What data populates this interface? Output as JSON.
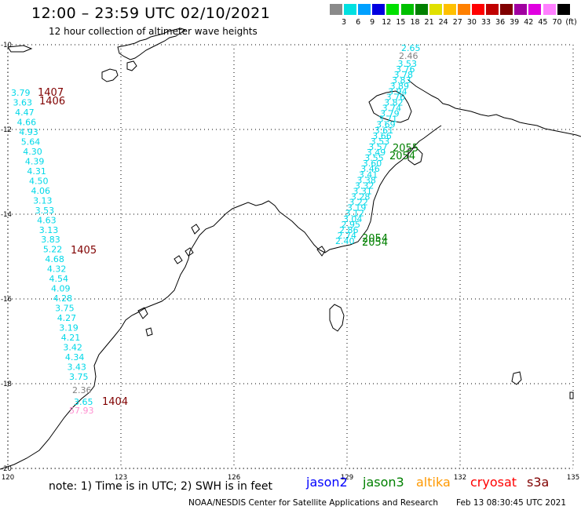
{
  "header": {
    "title": "12:00 – 23:59 UTC 02/10/2021",
    "subtitle": "12 hour collection of altimeter wave heights"
  },
  "legend": {
    "unit": "(ft)",
    "items": [
      {
        "label": "3",
        "color": "#8a8a8a"
      },
      {
        "label": "6",
        "color": "#00e0e0"
      },
      {
        "label": "9",
        "color": "#00a0ff"
      },
      {
        "label": "12",
        "color": "#0000e0"
      },
      {
        "label": "15",
        "color": "#00e000"
      },
      {
        "label": "18",
        "color": "#00c000"
      },
      {
        "label": "21",
        "color": "#008000"
      },
      {
        "label": "24",
        "color": "#e0e000"
      },
      {
        "label": "27",
        "color": "#ffc000"
      },
      {
        "label": "30",
        "color": "#ff8000"
      },
      {
        "label": "33",
        "color": "#ff0000"
      },
      {
        "label": "36",
        "color": "#c00000"
      },
      {
        "label": "39",
        "color": "#800000"
      },
      {
        "label": "42",
        "color": "#a000a0"
      },
      {
        "label": "45",
        "color": "#e000e0"
      },
      {
        "label": "70",
        "color": "#ff80ff"
      },
      {
        "label": "",
        "color": "#000000"
      }
    ]
  },
  "axes": {
    "lon_labels": [
      "120",
      "123",
      "126",
      "129",
      "132",
      "135"
    ],
    "lat_labels": [
      "-10",
      "-12",
      "-14",
      "-16",
      "-18",
      "-20"
    ]
  },
  "track_west": {
    "color": "#00d8e8",
    "values": [
      "3.79",
      "3.63",
      "4.47",
      "4.66",
      "4.93",
      "5.64",
      "4.30",
      "4.39",
      "4.31",
      "4.50",
      "4.06",
      "3.13",
      "3.53",
      "4.63",
      "3.13",
      "3.83",
      "5.22",
      "4.68",
      "4.32",
      "4.54",
      "4.09",
      "4.28",
      "3.75",
      "4.27",
      "3.19",
      "4.21",
      "3.42",
      "4.34",
      "3.43",
      "3.75"
    ],
    "grey_value": "2.36",
    "last_cyan": "3.65",
    "pink_value": "57.93"
  },
  "track_east": {
    "color": "#00d8e8",
    "top_value": "2.65",
    "grey_value": "2.46",
    "values": [
      "3.53",
      "3.76",
      "3.78",
      "3.83",
      "3.89",
      "3.94",
      "3.76",
      "3.82",
      "3.74",
      "3.79",
      "3.71",
      "3.69",
      "3.61",
      "3.66",
      "3.53",
      "3.57",
      "3.49",
      "3.55",
      "3.60",
      "3.46",
      "3.41",
      "3.38",
      "3.32",
      "3.31",
      "3.28",
      "3.22",
      "3.19",
      "3.12",
      "3.04",
      "2.95",
      "2.86",
      "2.74",
      "2.40"
    ]
  },
  "time_labels": [
    {
      "text": "1407",
      "color": "#800000"
    },
    {
      "text": "1406",
      "color": "#800000"
    },
    {
      "text": "1405",
      "color": "#800000"
    },
    {
      "text": "1404",
      "color": "#800000"
    },
    {
      "text": "2055",
      "color": "#008000"
    },
    {
      "text": "2054",
      "color": "#008000"
    },
    {
      "text": "2054",
      "color": "#008000"
    },
    {
      "text": "2054",
      "color": "#008000"
    }
  ],
  "footer": {
    "note": "note: 1) Time is in UTC; 2) SWH is in feet",
    "satellites": [
      {
        "name": "jason2",
        "color": "#0000ff"
      },
      {
        "name": "jason3",
        "color": "#008000"
      },
      {
        "name": "altika",
        "color": "#ff9900"
      },
      {
        "name": "cryosat",
        "color": "#ff0000"
      },
      {
        "name": "s3a",
        "color": "#800000"
      }
    ],
    "credit": "NOAA/NESDIS Center for Satellite Applications and Research",
    "timestamp": "Feb 13 08:30:45 UTC 2021"
  }
}
